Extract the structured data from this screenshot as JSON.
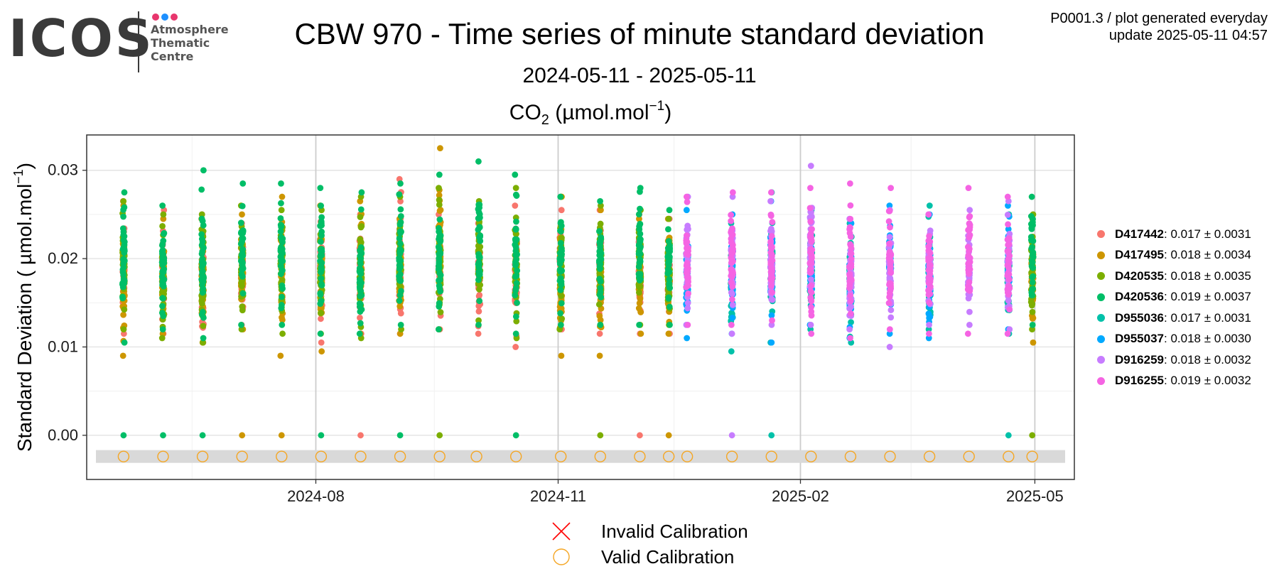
{
  "logo": {
    "word": "ICOS",
    "lines": [
      "Atmosphere",
      "Thematic",
      "Centre"
    ],
    "dot_colors": [
      "#e8366d",
      "#1e90ff",
      "#e8366d"
    ]
  },
  "header": {
    "title": "CBW 970 - Time series of minute standard deviation",
    "subtitle": "2024-05-11 - 2025-05-11",
    "meta_line1": "P0001.3 / plot generated everyday",
    "meta_line2": "update  2025-05-11 04:57"
  },
  "chart_data": {
    "type": "scatter",
    "title": "CO2 (µmol.mol-1)",
    "panel_title": {
      "species": "CO",
      "species_sub": "2",
      "unit": " (µmol.mol",
      "unit_sup": "−1",
      "unit_end": ")"
    },
    "ylabel": {
      "main": "Standard Deviation ( µmol.mol",
      "sup": "−1",
      "end": ")"
    },
    "xlabel": "",
    "x_range": [
      "2024-05-11",
      "2025-05-11"
    ],
    "x_ticks": [
      {
        "date": "2024-08-01",
        "label": "2024-08"
      },
      {
        "date": "2024-11-01",
        "label": "2024-11"
      },
      {
        "date": "2025-02-01",
        "label": "2025-02"
      },
      {
        "date": "2025-05-01",
        "label": "2025-05"
      }
    ],
    "ylim": [
      -0.005,
      0.034
    ],
    "y_ticks": [
      0.0,
      0.01,
      0.02,
      0.03
    ],
    "y_tick_labels": [
      "0.00",
      "0.01",
      "0.02",
      "0.03"
    ],
    "grid": true,
    "legend_position": "right",
    "series": [
      {
        "name": "D417442",
        "stat": "0.017 ± 0.0031",
        "color": "#f8766d",
        "points": [
          [
            "2024-05-20",
            0.0115,
            0.0265
          ],
          [
            "2024-06-04",
            0.0115,
            0.0255
          ],
          [
            "2024-06-19",
            0.0105,
            0.025
          ],
          [
            "2024-07-04",
            0.0125,
            0.024
          ],
          [
            "2024-08-03",
            0.0105,
            0.026
          ],
          [
            "2024-08-18",
            0.0115,
            0.025
          ],
          [
            "2024-09-02",
            0.0115,
            0.029
          ],
          [
            "2024-09-17",
            0.012,
            0.025
          ],
          [
            "2024-10-02",
            0.0115,
            0.024
          ],
          [
            "2024-10-16",
            0.01,
            0.026
          ],
          [
            "2024-11-02",
            0.012,
            0.0255
          ],
          [
            "2024-11-17",
            0.0115,
            0.0255
          ],
          [
            "2024-12-02",
            0.0115,
            0.025
          ],
          [
            "2024-12-13",
            0.0115,
            0.0245
          ]
        ],
        "zero_dates": [
          "2024-08-18",
          "2024-12-02"
        ]
      },
      {
        "name": "D417495",
        "stat": "0.018 ± 0.0034",
        "color": "#cd9600",
        "points": [
          [
            "2024-05-20",
            0.009,
            0.026
          ],
          [
            "2024-06-04",
            0.0115,
            0.0245
          ],
          [
            "2024-06-19",
            0.0105,
            0.0245
          ],
          [
            "2024-07-04",
            0.012,
            0.025
          ],
          [
            "2024-07-19",
            0.009,
            0.027
          ],
          [
            "2024-08-03",
            0.0095,
            0.026
          ],
          [
            "2024-08-18",
            0.0115,
            0.0265
          ],
          [
            "2024-09-02",
            0.0115,
            0.0245
          ],
          [
            "2024-09-17",
            0.012,
            0.0325
          ],
          [
            "2024-11-02",
            0.009,
            0.027
          ],
          [
            "2024-11-17",
            0.009,
            0.0255
          ],
          [
            "2024-12-02",
            0.0115,
            0.0245
          ],
          [
            "2024-12-13",
            0.0115,
            0.0245
          ],
          [
            "2025-04-30",
            0.0105,
            0.0245
          ]
        ],
        "zero_dates": [
          "2024-07-04",
          "2024-07-19",
          "2024-12-13"
        ]
      },
      {
        "name": "D420535",
        "stat": "0.018 ± 0.0035",
        "color": "#7cae00",
        "points": [
          [
            "2024-05-20",
            0.012,
            0.0265
          ],
          [
            "2024-06-04",
            0.011,
            0.025
          ],
          [
            "2024-06-19",
            0.0105,
            0.025
          ],
          [
            "2024-07-04",
            0.012,
            0.026
          ],
          [
            "2024-07-19",
            0.0115,
            0.0255
          ],
          [
            "2024-08-03",
            0.0115,
            0.0255
          ],
          [
            "2024-08-18",
            0.011,
            0.027
          ],
          [
            "2024-09-02",
            0.012,
            0.027
          ],
          [
            "2024-09-17",
            0.012,
            0.028
          ],
          [
            "2024-10-02",
            0.013,
            0.0265
          ],
          [
            "2024-10-16",
            0.011,
            0.028
          ],
          [
            "2024-11-02",
            0.012,
            0.027
          ],
          [
            "2024-11-17",
            0.0125,
            0.026
          ],
          [
            "2024-12-02",
            0.0125,
            0.0255
          ],
          [
            "2024-12-13",
            0.0125,
            0.0245
          ],
          [
            "2025-04-30",
            0.012,
            0.025
          ]
        ],
        "zero_dates": [
          "2024-09-17",
          "2024-11-17",
          "2025-04-30"
        ]
      },
      {
        "name": "D420536",
        "stat": "0.019 ± 0.0037",
        "color": "#00be67",
        "points": [
          [
            "2024-05-20",
            0.0105,
            0.0275
          ],
          [
            "2024-06-04",
            0.012,
            0.026
          ],
          [
            "2024-06-19",
            0.011,
            0.03
          ],
          [
            "2024-07-04",
            0.0125,
            0.0285
          ],
          [
            "2024-07-19",
            0.0125,
            0.0285
          ],
          [
            "2024-08-03",
            0.0115,
            0.028
          ],
          [
            "2024-08-18",
            0.0115,
            0.0275
          ],
          [
            "2024-09-02",
            0.0125,
            0.0285
          ],
          [
            "2024-09-17",
            0.012,
            0.0295
          ],
          [
            "2024-10-02",
            0.0125,
            0.031
          ],
          [
            "2024-10-16",
            0.0115,
            0.0295
          ],
          [
            "2024-11-02",
            0.0125,
            0.027
          ],
          [
            "2024-11-17",
            0.0125,
            0.0265
          ],
          [
            "2024-12-02",
            0.0125,
            0.028
          ],
          [
            "2024-12-13",
            0.0125,
            0.0255
          ],
          [
            "2025-04-30",
            0.0125,
            0.027
          ]
        ],
        "zero_dates": [
          "2024-05-20",
          "2024-06-04",
          "2024-06-19",
          "2024-08-03",
          "2024-09-02",
          "2024-10-16"
        ]
      },
      {
        "name": "D955036",
        "stat": "0.017 ± 0.0031",
        "color": "#00c1a9",
        "points": [
          [
            "2025-01-06",
            0.0095,
            0.024
          ],
          [
            "2025-01-21",
            0.0105,
            0.0275
          ],
          [
            "2025-02-05",
            0.012,
            0.0255
          ],
          [
            "2025-02-20",
            0.0105,
            0.024
          ],
          [
            "2025-03-22",
            0.012,
            0.026
          ],
          [
            "2025-04-21",
            0.0115,
            0.025
          ]
        ],
        "zero_dates": [
          "2025-01-21",
          "2025-04-21"
        ]
      },
      {
        "name": "D955037",
        "stat": "0.018 ± 0.0030",
        "color": "#00a9ff",
        "points": [
          [
            "2024-12-20",
            0.011,
            0.0255
          ],
          [
            "2025-01-06",
            0.0115,
            0.025
          ],
          [
            "2025-01-21",
            0.0105,
            0.0265
          ],
          [
            "2025-02-05",
            0.0125,
            0.0245
          ],
          [
            "2025-02-20",
            0.011,
            0.024
          ],
          [
            "2025-03-07",
            0.0115,
            0.026
          ],
          [
            "2025-03-22",
            0.011,
            0.025
          ],
          [
            "2025-04-21",
            0.012,
            0.026
          ]
        ],
        "zero_dates": []
      },
      {
        "name": "D916259",
        "stat": "0.018 ± 0.0032",
        "color": "#c77cff",
        "points": [
          [
            "2024-12-20",
            0.0125,
            0.027
          ],
          [
            "2025-01-06",
            0.0115,
            0.027
          ],
          [
            "2025-01-21",
            0.0125,
            0.0265
          ],
          [
            "2025-02-05",
            0.0125,
            0.0305
          ],
          [
            "2025-02-20",
            0.012,
            0.0245
          ],
          [
            "2025-03-07",
            0.01,
            0.0255
          ],
          [
            "2025-03-22",
            0.0125,
            0.025
          ],
          [
            "2025-04-06",
            0.0125,
            0.0255
          ],
          [
            "2025-04-21",
            0.012,
            0.0265
          ]
        ],
        "zero_dates": [
          "2025-01-06"
        ]
      },
      {
        "name": "D916255",
        "stat": "0.019 ± 0.0032",
        "color": "#f564e3",
        "points": [
          [
            "2024-12-20",
            0.0125,
            0.027
          ],
          [
            "2025-01-06",
            0.0125,
            0.0275
          ],
          [
            "2025-01-21",
            0.013,
            0.0275
          ],
          [
            "2025-02-05",
            0.0115,
            0.028
          ],
          [
            "2025-02-20",
            0.011,
            0.0285
          ],
          [
            "2025-03-07",
            0.012,
            0.028
          ],
          [
            "2025-03-22",
            0.0115,
            0.025
          ],
          [
            "2025-04-06",
            0.0115,
            0.028
          ],
          [
            "2025-04-21",
            0.0115,
            0.027
          ]
        ],
        "zero_dates": []
      }
    ],
    "calibration": {
      "valid_dates": [
        "2024-05-20",
        "2024-06-04",
        "2024-06-19",
        "2024-07-04",
        "2024-07-19",
        "2024-08-03",
        "2024-08-18",
        "2024-09-02",
        "2024-09-17",
        "2024-10-01",
        "2024-10-16",
        "2024-11-02",
        "2024-11-17",
        "2024-12-02",
        "2024-12-13",
        "2024-12-20",
        "2025-01-06",
        "2025-01-21",
        "2025-02-05",
        "2025-02-20",
        "2025-03-07",
        "2025-03-22",
        "2025-04-06",
        "2025-04-21",
        "2025-04-30"
      ],
      "valid_color": "#f5a623",
      "invalid_color": "#ff0000",
      "band_y": -0.0024
    }
  },
  "cal_legend": {
    "invalid_label": "Invalid Calibration",
    "valid_label": "Valid Calibration"
  }
}
